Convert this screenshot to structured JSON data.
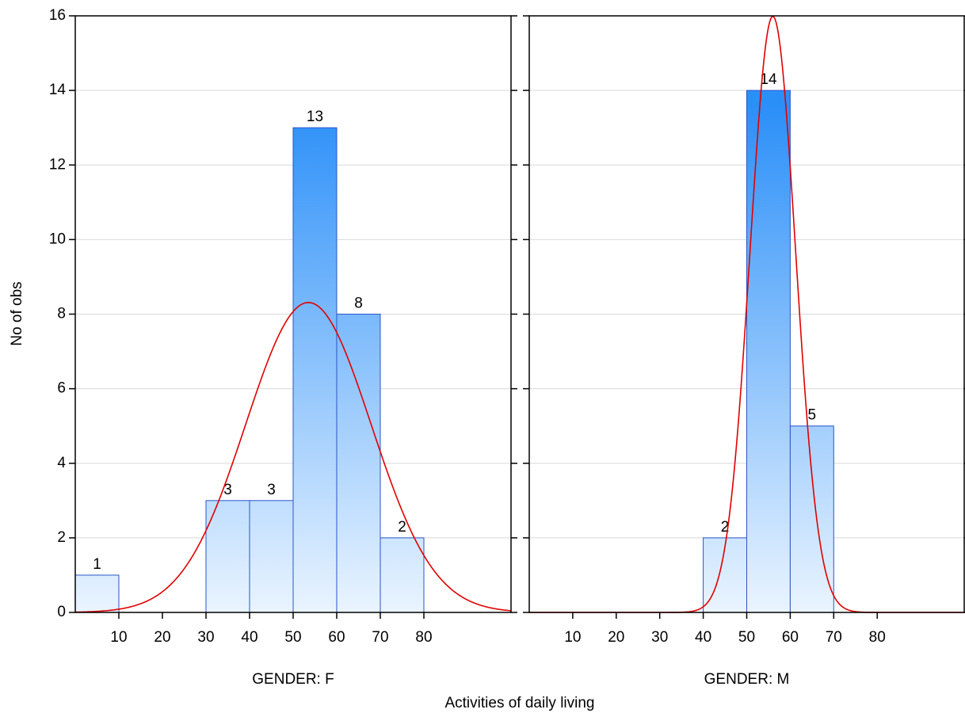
{
  "xlabel": "Activities of daily living",
  "chart_data": [
    {
      "type": "histogram",
      "title": "GENDER: F",
      "ylabel": "No of obs",
      "bins": [
        0,
        10,
        20,
        30,
        40,
        50,
        60,
        70,
        80
      ],
      "values": [
        1,
        0,
        0,
        3,
        3,
        13,
        8,
        2
      ],
      "color": "#2b8ff8",
      "edge_color": "#2a55c8",
      "xlim": [
        0,
        100
      ],
      "xticks": [
        10,
        20,
        30,
        40,
        50,
        60,
        70,
        80
      ],
      "ylim": [
        0,
        16
      ],
      "yticks": [
        0,
        2,
        4,
        6,
        8,
        10,
        12,
        14,
        16
      ],
      "grid": true,
      "normal_fit": {
        "mean": 53.5,
        "sd": 14.4,
        "color": "#e00000"
      }
    },
    {
      "type": "histogram",
      "title": "GENDER: M",
      "bins": [
        40,
        50,
        60,
        70
      ],
      "values": [
        2,
        14,
        5
      ],
      "color": "#2b8ff8",
      "edge_color": "#2a55c8",
      "xlim": [
        0,
        100
      ],
      "xticks": [
        10,
        20,
        30,
        40,
        50,
        60,
        70,
        80
      ],
      "ylim": [
        0,
        16
      ],
      "yticks": [
        0,
        2,
        4,
        6,
        8,
        10,
        12,
        14,
        16
      ],
      "grid": true,
      "normal_fit": {
        "mean": 56,
        "sd": 5.24,
        "color": "#e00000"
      }
    }
  ]
}
